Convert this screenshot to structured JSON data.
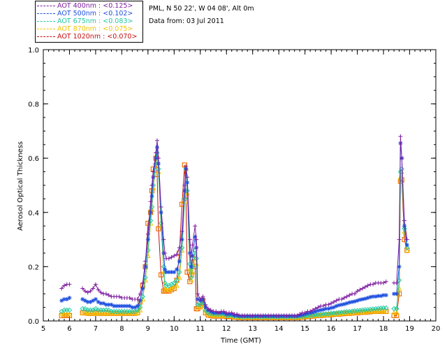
{
  "chart_data": {
    "type": "line",
    "title": "",
    "site": "PML, N 50 22', W 04 08', Alt 0m",
    "date_text": "Data from: 03 Jul 2011",
    "xlabel": "Time (GMT)",
    "ylabel": "Aerosol Optical Thickness",
    "xlim": [
      5,
      20
    ],
    "ylim": [
      0,
      1.0
    ],
    "xticks": [
      "5",
      "6",
      "7",
      "8",
      "9",
      "10",
      "11",
      "12",
      "13",
      "14",
      "15",
      "16",
      "17",
      "18",
      "19",
      "20"
    ],
    "yticks": [
      "0.0",
      "0.2",
      "0.4",
      "0.6",
      "0.8",
      "1.0"
    ],
    "grid": false,
    "legend_position": "top-left",
    "x": [
      5.7,
      5.8,
      5.9,
      6.0,
      6.5,
      6.6,
      6.7,
      6.8,
      6.9,
      7.0,
      7.1,
      7.2,
      7.3,
      7.4,
      7.5,
      7.6,
      7.7,
      7.8,
      7.9,
      8.0,
      8.1,
      8.2,
      8.3,
      8.4,
      8.5,
      8.6,
      8.7,
      8.8,
      8.9,
      9.0,
      9.1,
      9.15,
      9.2,
      9.3,
      9.35,
      9.4,
      9.5,
      9.6,
      9.65,
      9.7,
      9.8,
      9.9,
      10.0,
      10.1,
      10.2,
      10.3,
      10.4,
      10.45,
      10.5,
      10.6,
      10.65,
      10.7,
      10.8,
      10.85,
      10.9,
      11.0,
      11.1,
      11.2,
      11.3,
      11.4,
      11.5,
      11.6,
      11.7,
      11.8,
      11.9,
      12.0,
      12.1,
      12.2,
      12.3,
      12.4,
      12.5,
      12.6,
      12.7,
      12.8,
      12.9,
      13.0,
      13.1,
      13.2,
      13.3,
      13.4,
      13.5,
      13.6,
      13.7,
      13.8,
      13.9,
      14.0,
      14.1,
      14.2,
      14.3,
      14.4,
      14.5,
      14.6,
      14.7,
      14.8,
      14.9,
      15.0,
      15.1,
      15.2,
      15.3,
      15.4,
      15.5,
      15.6,
      15.7,
      15.8,
      15.9,
      16.0,
      16.1,
      16.2,
      16.3,
      16.4,
      16.5,
      16.6,
      16.7,
      16.8,
      16.9,
      17.0,
      17.1,
      17.2,
      17.3,
      17.4,
      17.5,
      17.6,
      17.7,
      17.8,
      17.9,
      18.0,
      18.1,
      18.4,
      18.5,
      18.6,
      18.65,
      18.7,
      18.8,
      18.9
    ],
    "series": [
      {
        "name": "AOT  400nm : <0.125>",
        "color": "#7f1fa0",
        "marker": "plus",
        "values": [
          0.12,
          0.13,
          0.135,
          0.135,
          0.12,
          0.11,
          0.105,
          0.11,
          0.12,
          0.135,
          0.115,
          0.105,
          0.1,
          0.1,
          0.095,
          0.09,
          0.09,
          0.09,
          0.09,
          0.085,
          0.085,
          0.085,
          0.085,
          0.08,
          0.08,
          0.08,
          0.1,
          0.14,
          0.22,
          0.32,
          0.44,
          0.5,
          0.55,
          0.62,
          0.665,
          0.6,
          0.42,
          0.3,
          0.25,
          0.23,
          0.23,
          0.235,
          0.24,
          0.245,
          0.27,
          0.33,
          0.5,
          0.57,
          0.53,
          0.3,
          0.24,
          0.28,
          0.35,
          0.3,
          0.1,
          0.08,
          0.09,
          0.06,
          0.045,
          0.04,
          0.035,
          0.035,
          0.03,
          0.035,
          0.035,
          0.03,
          0.03,
          0.03,
          0.025,
          0.025,
          0.02,
          0.02,
          0.02,
          0.02,
          0.02,
          0.02,
          0.02,
          0.02,
          0.02,
          0.02,
          0.02,
          0.02,
          0.02,
          0.02,
          0.02,
          0.02,
          0.02,
          0.02,
          0.02,
          0.02,
          0.02,
          0.02,
          0.02,
          0.025,
          0.03,
          0.03,
          0.035,
          0.035,
          0.04,
          0.045,
          0.05,
          0.055,
          0.055,
          0.06,
          0.06,
          0.065,
          0.07,
          0.075,
          0.08,
          0.08,
          0.085,
          0.09,
          0.095,
          0.1,
          0.1,
          0.11,
          0.115,
          0.12,
          0.125,
          0.13,
          0.135,
          0.135,
          0.14,
          0.14,
          0.14,
          0.14,
          0.145,
          0.14,
          0.14,
          0.3,
          0.68,
          0.6,
          0.37,
          0.3
        ]
      },
      {
        "name": "AOT  500nm : <0.102>",
        "color": "#1e50e0",
        "marker": "asterisk",
        "values": [
          0.075,
          0.08,
          0.08,
          0.085,
          0.08,
          0.075,
          0.07,
          0.07,
          0.075,
          0.08,
          0.07,
          0.065,
          0.065,
          0.06,
          0.06,
          0.06,
          0.055,
          0.055,
          0.055,
          0.055,
          0.055,
          0.055,
          0.055,
          0.05,
          0.05,
          0.055,
          0.075,
          0.12,
          0.2,
          0.3,
          0.4,
          0.46,
          0.53,
          0.6,
          0.64,
          0.58,
          0.4,
          0.25,
          0.19,
          0.18,
          0.18,
          0.18,
          0.18,
          0.19,
          0.22,
          0.3,
          0.48,
          0.56,
          0.51,
          0.25,
          0.2,
          0.24,
          0.31,
          0.27,
          0.08,
          0.075,
          0.08,
          0.05,
          0.04,
          0.035,
          0.03,
          0.03,
          0.03,
          0.03,
          0.03,
          0.025,
          0.025,
          0.025,
          0.02,
          0.02,
          0.018,
          0.018,
          0.018,
          0.018,
          0.018,
          0.018,
          0.018,
          0.018,
          0.018,
          0.018,
          0.018,
          0.018,
          0.018,
          0.018,
          0.018,
          0.018,
          0.018,
          0.018,
          0.018,
          0.018,
          0.018,
          0.018,
          0.018,
          0.02,
          0.022,
          0.025,
          0.028,
          0.03,
          0.032,
          0.035,
          0.038,
          0.04,
          0.042,
          0.045,
          0.045,
          0.048,
          0.05,
          0.055,
          0.058,
          0.06,
          0.062,
          0.065,
          0.068,
          0.07,
          0.072,
          0.075,
          0.078,
          0.08,
          0.082,
          0.085,
          0.088,
          0.09,
          0.09,
          0.092,
          0.092,
          0.095,
          0.095,
          0.1,
          0.1,
          0.2,
          0.655,
          0.6,
          0.35,
          0.28
        ]
      },
      {
        "name": "AOT  675nm : <0.083>",
        "color": "#22c9a0",
        "marker": "diamond",
        "values": [
          0.035,
          0.04,
          0.04,
          0.04,
          0.045,
          0.045,
          0.04,
          0.04,
          0.04,
          0.045,
          0.04,
          0.04,
          0.04,
          0.04,
          0.04,
          0.035,
          0.035,
          0.035,
          0.035,
          0.035,
          0.035,
          0.035,
          0.035,
          0.035,
          0.035,
          0.04,
          0.05,
          0.09,
          0.16,
          0.26,
          0.37,
          0.42,
          0.5,
          0.58,
          0.62,
          0.56,
          0.36,
          0.2,
          0.14,
          0.13,
          0.13,
          0.135,
          0.14,
          0.15,
          0.18,
          0.27,
          0.45,
          0.56,
          0.48,
          0.21,
          0.16,
          0.2,
          0.26,
          0.23,
          0.06,
          0.06,
          0.07,
          0.04,
          0.03,
          0.028,
          0.025,
          0.025,
          0.025,
          0.025,
          0.025,
          0.02,
          0.02,
          0.02,
          0.018,
          0.018,
          0.015,
          0.015,
          0.015,
          0.015,
          0.015,
          0.015,
          0.015,
          0.015,
          0.015,
          0.015,
          0.015,
          0.015,
          0.015,
          0.015,
          0.015,
          0.015,
          0.015,
          0.015,
          0.015,
          0.015,
          0.015,
          0.015,
          0.015,
          0.016,
          0.017,
          0.018,
          0.019,
          0.02,
          0.021,
          0.022,
          0.023,
          0.024,
          0.025,
          0.026,
          0.027,
          0.028,
          0.029,
          0.03,
          0.031,
          0.032,
          0.033,
          0.034,
          0.035,
          0.036,
          0.037,
          0.038,
          0.039,
          0.04,
          0.041,
          0.042,
          0.043,
          0.044,
          0.045,
          0.046,
          0.047,
          0.048,
          0.048,
          0.045,
          0.045,
          0.15,
          0.55,
          0.56,
          0.34,
          0.27
        ]
      },
      {
        "name": "AOT  870nm : <0.075>",
        "color": "#f2c300",
        "marker": "triangle",
        "values": [
          0.025,
          0.025,
          0.025,
          0.025,
          0.03,
          0.03,
          0.028,
          0.028,
          0.028,
          0.03,
          0.028,
          0.028,
          0.028,
          0.028,
          0.028,
          0.028,
          0.028,
          0.028,
          0.028,
          0.028,
          0.028,
          0.028,
          0.028,
          0.028,
          0.028,
          0.03,
          0.04,
          0.08,
          0.15,
          0.24,
          0.36,
          0.41,
          0.49,
          0.57,
          0.61,
          0.55,
          0.35,
          0.18,
          0.12,
          0.115,
          0.115,
          0.12,
          0.125,
          0.13,
          0.16,
          0.26,
          0.44,
          0.56,
          0.47,
          0.19,
          0.15,
          0.18,
          0.24,
          0.21,
          0.05,
          0.05,
          0.06,
          0.035,
          0.025,
          0.022,
          0.02,
          0.02,
          0.02,
          0.02,
          0.02,
          0.018,
          0.018,
          0.018,
          0.015,
          0.015,
          0.013,
          0.013,
          0.013,
          0.013,
          0.013,
          0.013,
          0.013,
          0.013,
          0.013,
          0.013,
          0.013,
          0.013,
          0.013,
          0.013,
          0.013,
          0.013,
          0.013,
          0.013,
          0.013,
          0.013,
          0.013,
          0.013,
          0.013,
          0.014,
          0.015,
          0.016,
          0.017,
          0.018,
          0.019,
          0.02,
          0.02,
          0.021,
          0.022,
          0.022,
          0.023,
          0.024,
          0.025,
          0.025,
          0.026,
          0.027,
          0.028,
          0.028,
          0.029,
          0.03,
          0.03,
          0.031,
          0.032,
          0.032,
          0.033,
          0.034,
          0.035,
          0.035,
          0.035,
          0.035,
          0.035,
          0.035,
          0.035,
          0.03,
          0.03,
          0.12,
          0.53,
          0.55,
          0.33,
          0.26
        ]
      },
      {
        "name": "AOT 1020nm : <0.070>",
        "color": "#c41010",
        "marker": "square",
        "marker_color": "#f07000",
        "values": [
          0.02,
          0.02,
          0.02,
          0.02,
          0.03,
          0.03,
          0.028,
          0.028,
          0.028,
          0.03,
          0.028,
          0.028,
          0.028,
          0.028,
          0.028,
          0.028,
          0.028,
          0.028,
          0.028,
          0.028,
          0.028,
          0.028,
          0.028,
          0.028,
          0.028,
          0.03,
          0.07,
          0.13,
          0.2,
          0.36,
          0.4,
          0.48,
          0.56,
          0.6,
          0.54,
          0.34,
          0.17,
          0.11,
          0.11,
          0.11,
          0.11,
          0.115,
          0.12,
          0.15,
          0.25,
          0.43,
          0.575,
          0.46,
          0.18,
          0.145,
          0.17,
          0.23,
          0.2,
          0.045,
          0.045,
          0.055,
          0.075,
          0.03,
          0.022,
          0.02,
          0.018,
          0.018,
          0.018,
          0.018,
          0.018,
          0.016,
          0.016,
          0.016,
          0.014,
          0.014,
          0.012,
          0.012,
          0.012,
          0.012,
          0.012,
          0.012,
          0.012,
          0.012,
          0.012,
          0.012,
          0.012,
          0.012,
          0.012,
          0.012,
          0.012,
          0.012,
          0.012,
          0.012,
          0.012,
          0.012,
          0.012,
          0.012,
          0.012,
          0.013,
          0.014,
          0.015,
          0.016,
          0.017,
          0.018,
          0.019,
          0.02,
          0.02,
          0.021,
          0.022,
          0.022,
          0.023,
          0.024,
          0.025,
          0.025,
          0.026,
          0.027,
          0.028,
          0.028,
          0.029,
          0.03,
          0.03,
          0.031,
          0.032,
          0.032,
          0.033,
          0.034,
          0.035,
          0.035,
          0.035,
          0.035,
          0.035,
          0.035,
          0.02,
          0.02,
          0.1,
          0.515,
          0.52,
          0.3,
          0.26
        ]
      }
    ]
  }
}
